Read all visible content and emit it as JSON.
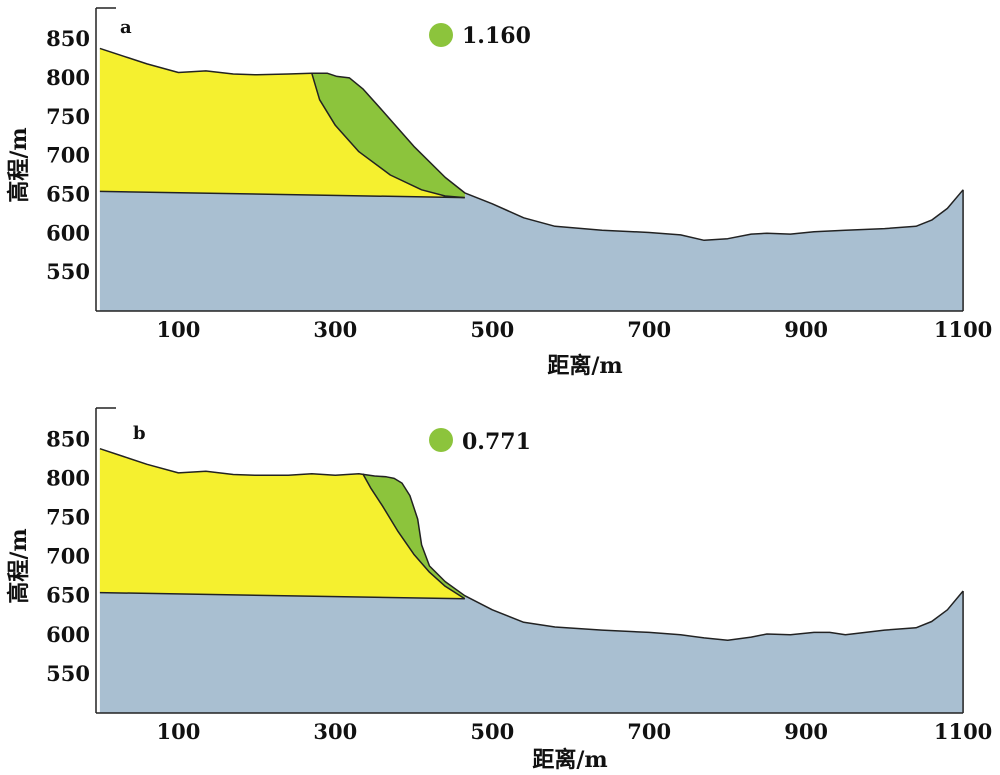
{
  "colors": {
    "bedrock": "#a9bfd1",
    "slope_body": "#f5f02f",
    "sliding_mass": "#8cc43c",
    "outline": "#222222"
  },
  "chart_data": [
    {
      "type": "area",
      "panel_label": "a",
      "safety_factor": "1.160",
      "xlabel": "距离/m",
      "ylabel": "高程/m",
      "xlim": [
        -5,
        1105
      ],
      "ylim": [
        500,
        890
      ],
      "xticks": [
        100,
        300,
        500,
        700,
        900,
        1100
      ],
      "yticks": [
        550,
        600,
        650,
        700,
        750,
        800,
        850
      ],
      "grid": false,
      "surface_profile": {
        "x": [
          0,
          30,
          60,
          100,
          135,
          170,
          200,
          240,
          270,
          290,
          302,
          318,
          335,
          360,
          400,
          440,
          465,
          500,
          540,
          580,
          640,
          700,
          740,
          770,
          800,
          830,
          850,
          880,
          910,
          950,
          1000,
          1040,
          1060,
          1080,
          1100
        ],
        "y": [
          838,
          828,
          818,
          807,
          809,
          805,
          804,
          805,
          806,
          806,
          802,
          800,
          786,
          758,
          712,
          672,
          652,
          638,
          620,
          609,
          604,
          601,
          598,
          591,
          593,
          599,
          600,
          599,
          602,
          604,
          606,
          609,
          617,
          632,
          656
        ]
      },
      "layer_boundary": {
        "x": [
          0,
          465
        ],
        "y": [
          654,
          646
        ]
      },
      "slip_surface": {
        "x": [
          270,
          280,
          300,
          330,
          370,
          410,
          440,
          465
        ],
        "y": [
          806,
          772,
          739,
          705,
          675,
          656,
          648,
          646
        ]
      }
    },
    {
      "type": "area",
      "panel_label": "b",
      "safety_factor": "0.771",
      "xlabel": "距离/m",
      "ylabel": "高程/m",
      "xlim": [
        -5,
        1105
      ],
      "ylim": [
        500,
        890
      ],
      "xticks": [
        100,
        300,
        500,
        700,
        900,
        1100
      ],
      "yticks": [
        550,
        600,
        650,
        700,
        750,
        800,
        850
      ],
      "grid": false,
      "surface_profile": {
        "x": [
          0,
          30,
          60,
          100,
          135,
          170,
          200,
          240,
          270,
          300,
          330,
          350,
          365,
          375,
          385,
          395,
          405,
          410,
          420,
          440,
          465,
          500,
          540,
          580,
          640,
          700,
          740,
          770,
          800,
          830,
          850,
          880,
          910,
          930,
          950,
          1000,
          1040,
          1060,
          1080,
          1100
        ],
        "y": [
          838,
          828,
          818,
          807,
          809,
          805,
          804,
          804,
          806,
          804,
          806,
          803,
          802,
          800,
          794,
          778,
          748,
          715,
          688,
          668,
          650,
          632,
          616,
          610,
          606,
          603,
          600,
          596,
          593,
          597,
          601,
          600,
          603,
          603,
          600,
          606,
          609,
          617,
          632,
          656
        ]
      },
      "layer_boundary": {
        "x": [
          0,
          465
        ],
        "y": [
          654,
          646
        ]
      },
      "slip_surface": {
        "x": [
          335,
          345,
          360,
          380,
          400,
          420,
          440,
          465
        ],
        "y": [
          806,
          788,
          765,
          732,
          703,
          680,
          662,
          646
        ]
      }
    }
  ]
}
